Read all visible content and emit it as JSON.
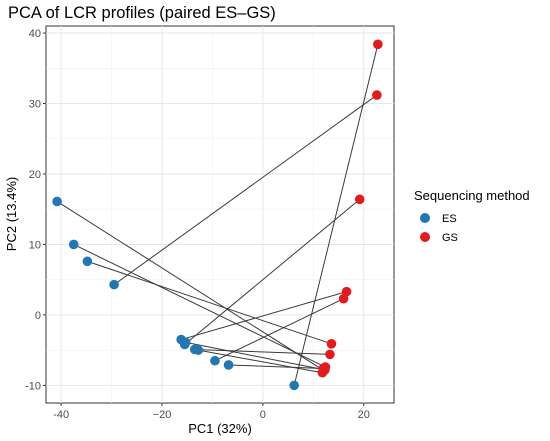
{
  "chart_data": {
    "type": "scatter",
    "title": "PCA of LCR profiles (paired ES–GS)",
    "xlabel": "PC1 (32%)",
    "ylabel": "PC2 (13.4%)",
    "xlim": [
      -43,
      26
    ],
    "ylim": [
      -12.5,
      41
    ],
    "x_ticks": [
      -40,
      -20,
      0,
      20
    ],
    "y_ticks": [
      -10,
      0,
      10,
      20,
      30,
      40
    ],
    "x_tick_labels": [
      "-40",
      "−20",
      "0",
      "20"
    ],
    "y_tick_labels": [
      "-10",
      "0",
      "10",
      "20",
      "30",
      "40"
    ],
    "grid": true,
    "legend": {
      "title": "Sequencing method",
      "position": "right",
      "entries": [
        {
          "label": "ES",
          "color": "#1f77b4"
        },
        {
          "label": "GS",
          "color": "#e41a1c"
        }
      ]
    },
    "series": [
      {
        "name": "ES",
        "color": "#1f77b4",
        "points": [
          {
            "x": -40.8,
            "y": 16.1
          },
          {
            "x": -37.5,
            "y": 10.0
          },
          {
            "x": -34.8,
            "y": 7.6
          },
          {
            "x": -29.5,
            "y": 4.3
          },
          {
            "x": -16.2,
            "y": -3.5
          },
          {
            "x": -15.5,
            "y": -4.2
          },
          {
            "x": -13.5,
            "y": -4.9
          },
          {
            "x": -12.8,
            "y": -5.0
          },
          {
            "x": -9.5,
            "y": -6.5
          },
          {
            "x": -6.8,
            "y": -7.1
          },
          {
            "x": 6.2,
            "y": -10.0
          },
          {
            "x": -15.3,
            "y": -3.9
          }
        ]
      },
      {
        "name": "GS",
        "color": "#e41a1c",
        "points": [
          {
            "x": 22.8,
            "y": 38.4
          },
          {
            "x": 22.6,
            "y": 31.2
          },
          {
            "x": 19.2,
            "y": 16.4
          },
          {
            "x": 16.6,
            "y": 3.3
          },
          {
            "x": 16.0,
            "y": 2.3
          },
          {
            "x": 13.6,
            "y": -4.1
          },
          {
            "x": 13.3,
            "y": -5.6
          },
          {
            "x": 12.4,
            "y": -7.4
          },
          {
            "x": 12.1,
            "y": -7.9
          },
          {
            "x": 11.8,
            "y": -8.2
          },
          {
            "x": 12.0,
            "y": -7.6
          },
          {
            "x": 12.3,
            "y": -7.8
          }
        ]
      }
    ],
    "pairs": [
      [
        {
          "x": -40.8,
          "y": 16.1
        },
        {
          "x": 12.1,
          "y": -7.9
        }
      ],
      [
        {
          "x": -37.5,
          "y": 10.0
        },
        {
          "x": 12.4,
          "y": -7.4
        }
      ],
      [
        {
          "x": -34.8,
          "y": 7.6
        },
        {
          "x": 13.6,
          "y": -4.1
        }
      ],
      [
        {
          "x": -29.5,
          "y": 4.3
        },
        {
          "x": 22.6,
          "y": 31.2
        }
      ],
      [
        {
          "x": -16.2,
          "y": -3.5
        },
        {
          "x": 16.6,
          "y": 3.3
        }
      ],
      [
        {
          "x": -15.5,
          "y": -4.2
        },
        {
          "x": 19.2,
          "y": 16.4
        }
      ],
      [
        {
          "x": -13.5,
          "y": -4.9
        },
        {
          "x": 13.3,
          "y": -5.6
        }
      ],
      [
        {
          "x": -12.8,
          "y": -5.0
        },
        {
          "x": 11.8,
          "y": -8.2
        }
      ],
      [
        {
          "x": -9.5,
          "y": -6.5
        },
        {
          "x": 16.0,
          "y": 2.3
        }
      ],
      [
        {
          "x": -6.8,
          "y": -7.1
        },
        {
          "x": 12.0,
          "y": -7.6
        }
      ],
      [
        {
          "x": 6.2,
          "y": -10.0
        },
        {
          "x": 22.8,
          "y": 38.4
        }
      ],
      [
        {
          "x": -15.3,
          "y": -3.9
        },
        {
          "x": 12.3,
          "y": -7.8
        }
      ]
    ]
  }
}
